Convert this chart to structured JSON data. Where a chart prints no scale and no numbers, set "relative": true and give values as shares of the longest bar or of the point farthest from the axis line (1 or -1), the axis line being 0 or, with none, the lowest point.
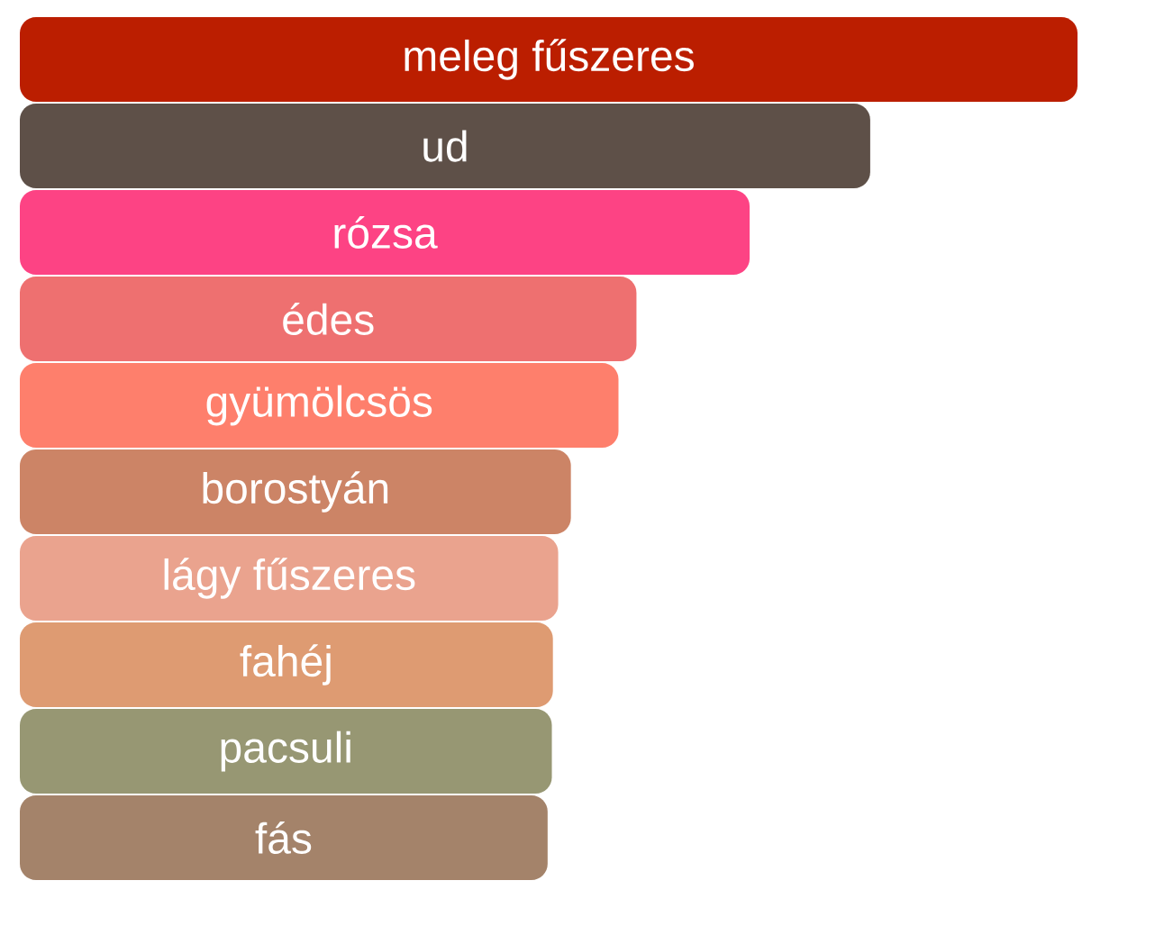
{
  "chart_data": {
    "type": "bar",
    "orientation": "horizontal",
    "relative": true,
    "categories": [
      "meleg fűszeres",
      "ud",
      "rózsa",
      "édes",
      "gyümölcsös",
      "borostyán",
      "lágy fűszeres",
      "fahéj",
      "pacsuli",
      "fás"
    ],
    "values": [
      1,
      0.804,
      0.69,
      0.583,
      0.566,
      0.521,
      0.509,
      0.504,
      0.503,
      0.499
    ],
    "colors": [
      "#bb1e00",
      "#5e5048",
      "#fd4384",
      "#ee7070",
      "#fe7f6c",
      "#cc8466",
      "#eaa38e",
      "#de9b72",
      "#979773",
      "#a4836a"
    ]
  }
}
